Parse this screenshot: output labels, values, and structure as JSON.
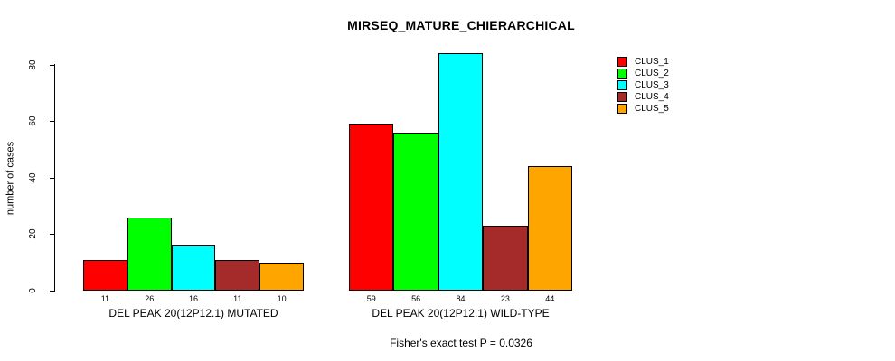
{
  "chart_data": {
    "type": "bar",
    "title": "MIRSEQ_MATURE_CHIERARCHICAL",
    "ylabel": "number of cases",
    "xlabel": "",
    "yticks": [
      0,
      20,
      40,
      60,
      80
    ],
    "ylim": [
      0,
      84
    ],
    "grid": false,
    "legend_position": "right-outside",
    "categories": [
      "DEL PEAK 20(12P12.1) MUTATED",
      "DEL PEAK 20(12P12.1) WILD-TYPE"
    ],
    "series": [
      {
        "name": "CLUS_1",
        "color": "#ff0000",
        "values": [
          11,
          59
        ]
      },
      {
        "name": "CLUS_2",
        "color": "#00ff00",
        "values": [
          26,
          56
        ]
      },
      {
        "name": "CLUS_3",
        "color": "#00ffff",
        "values": [
          16,
          84
        ]
      },
      {
        "name": "CLUS_4",
        "color": "#a52a2a",
        "values": [
          11,
          23
        ]
      },
      {
        "name": "CLUS_5",
        "color": "#ffa500",
        "values": [
          10,
          44
        ]
      }
    ],
    "annotation": "Fisher's exact test P = 0.0326"
  }
}
